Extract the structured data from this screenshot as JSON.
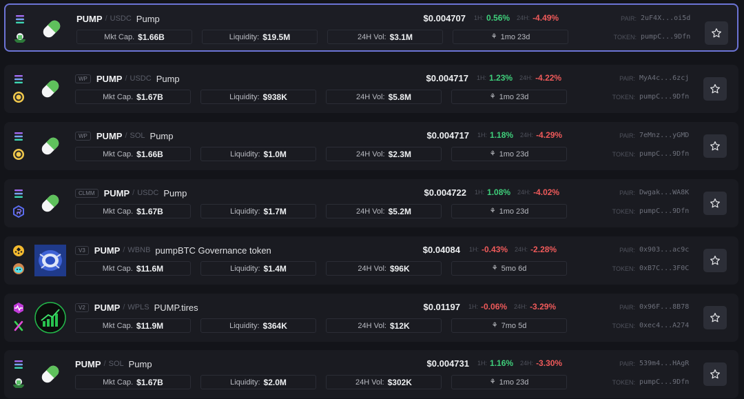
{
  "labels": {
    "mkt_cap": "Mkt Cap.",
    "liquidity": "Liquidity:",
    "vol": "24H Vol:",
    "h1": "1H:",
    "h24": "24H:",
    "pair": "PAIR:",
    "token": "TOKEN:",
    "sep": "/"
  },
  "colors": {
    "up": "#3fcf7b",
    "down": "#ef5a5a",
    "selected_border": "#6c74d6"
  },
  "rows": [
    {
      "dex": "",
      "base": "PUMP",
      "quote": "USDC",
      "name": "Pump",
      "price": "$0.004707",
      "h1": "0.56%",
      "h1_dir": "up",
      "h24": "-4.49%",
      "h24_dir": "down",
      "mkt_cap": "$1.66B",
      "liquidity": "$19.5M",
      "vol": "$3.1M",
      "age": "1mo 23d",
      "pair": "2uF4X...oi5d",
      "token": "pumpC...9Dfn",
      "chain_icon": "solana-icon",
      "dex_icon": "raydium-icon",
      "logo_icon": "pill-icon",
      "selected": true
    },
    {
      "dex": "WP",
      "base": "PUMP",
      "quote": "USDC",
      "name": "Pump",
      "price": "$0.004717",
      "h1": "1.23%",
      "h1_dir": "up",
      "h24": "-4.22%",
      "h24_dir": "down",
      "mkt_cap": "$1.67B",
      "liquidity": "$938K",
      "vol": "$5.8M",
      "age": "1mo 23d",
      "pair": "MyA4c...6zcj",
      "token": "pumpC...9Dfn",
      "chain_icon": "solana-icon",
      "dex_icon": "orca-icon",
      "logo_icon": "pill-icon",
      "selected": false
    },
    {
      "dex": "WP",
      "base": "PUMP",
      "quote": "SOL",
      "name": "Pump",
      "price": "$0.004717",
      "h1": "1.18%",
      "h1_dir": "up",
      "h24": "-4.29%",
      "h24_dir": "down",
      "mkt_cap": "$1.66B",
      "liquidity": "$1.0M",
      "vol": "$2.3M",
      "age": "1mo 23d",
      "pair": "7eMnz...yGMD",
      "token": "pumpC...9Dfn",
      "chain_icon": "solana-icon",
      "dex_icon": "orca-icon",
      "logo_icon": "pill-icon",
      "selected": false
    },
    {
      "dex": "CLMM",
      "base": "PUMP",
      "quote": "USDC",
      "name": "Pump",
      "price": "$0.004722",
      "h1": "1.08%",
      "h1_dir": "up",
      "h24": "-4.02%",
      "h24_dir": "down",
      "mkt_cap": "$1.67B",
      "liquidity": "$1.7M",
      "vol": "$5.2M",
      "age": "1mo 23d",
      "pair": "Dwgak...WA8K",
      "token": "pumpC...9Dfn",
      "chain_icon": "solana-icon",
      "dex_icon": "raydium-clmm-icon",
      "logo_icon": "pill-icon",
      "selected": false
    },
    {
      "dex": "V3",
      "base": "PUMP",
      "quote": "WBNB",
      "name": "pumpBTC Governance token",
      "price": "$0.04084",
      "h1": "-0.43%",
      "h1_dir": "down",
      "h24": "-2.28%",
      "h24_dir": "down",
      "mkt_cap": "$11.6M",
      "liquidity": "$1.4M",
      "vol": "$96K",
      "age": "5mo 6d",
      "pair": "0x903...ac9c",
      "token": "0xB7C...3F0C",
      "chain_icon": "bnb-icon",
      "dex_icon": "pancakeswap-icon",
      "logo_icon": "pumpbtc-logo-icon",
      "selected": false
    },
    {
      "dex": "V2",
      "base": "PUMP",
      "quote": "WPLS",
      "name": "PUMP.tires",
      "price": "$0.01197",
      "h1": "-0.06%",
      "h1_dir": "down",
      "h24": "-3.29%",
      "h24_dir": "down",
      "mkt_cap": "$11.9M",
      "liquidity": "$364K",
      "vol": "$12K",
      "age": "7mo 5d",
      "pair": "0x96F...8B78",
      "token": "0xec4...A274",
      "chain_icon": "pulsechain-icon",
      "dex_icon": "pulsex-icon",
      "logo_icon": "chart-up-logo-icon",
      "selected": false
    },
    {
      "dex": "",
      "base": "PUMP",
      "quote": "SOL",
      "name": "Pump",
      "price": "$0.004731",
      "h1": "1.16%",
      "h1_dir": "up",
      "h24": "-3.30%",
      "h24_dir": "down",
      "mkt_cap": "$1.67B",
      "liquidity": "$2.0M",
      "vol": "$302K",
      "age": "1mo 23d",
      "pair": "539m4...HAgR",
      "token": "pumpC...9Dfn",
      "chain_icon": "solana-icon",
      "dex_icon": "raydium-icon",
      "logo_icon": "pill-icon",
      "selected": false
    }
  ]
}
